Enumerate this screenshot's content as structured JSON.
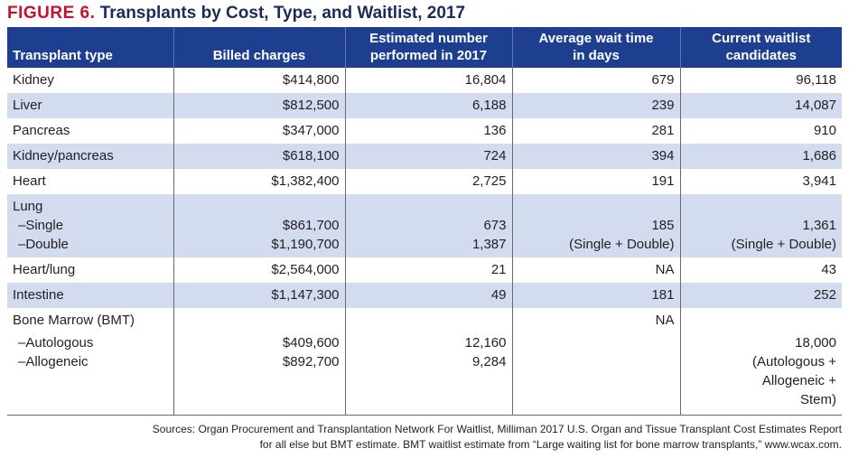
{
  "title": {
    "figure": "FIGURE 6.",
    "text": "Transplants by Cost, Type, and Waitlist, 2017"
  },
  "headers": {
    "c0": "Transplant type",
    "c1": "Billed charges",
    "c2a": "Estimated number",
    "c2b": "performed in 2017",
    "c3a": "Average wait time",
    "c3b": "in days",
    "c4a": "Current waitlist",
    "c4b": "candidates"
  },
  "rows": [
    {
      "type": "Kidney",
      "charges": "$414,800",
      "number": "16,804",
      "wait": "679",
      "waitlist": "96,118"
    },
    {
      "type": "Liver",
      "charges": "$812,500",
      "number": "6,188",
      "wait": "239",
      "waitlist": "14,087"
    },
    {
      "type": "Pancreas",
      "charges": "$347,000",
      "number": "136",
      "wait": "281",
      "waitlist": "910"
    },
    {
      "type": "Kidney/pancreas",
      "charges": "$618,100",
      "number": "724",
      "wait": "394",
      "waitlist": "1,686"
    },
    {
      "type": "Heart",
      "charges": "$1,382,400",
      "number": "2,725",
      "wait": "191",
      "waitlist": "3,941"
    }
  ],
  "lung": {
    "type": "Lung",
    "single_label": "–Single",
    "double_label": "–Double",
    "single_charges": "$861,700",
    "double_charges": "$1,190,700",
    "single_number": "673",
    "double_number": "1,387",
    "wait": "185",
    "wait_note": "(Single + Double)",
    "waitlist": "1,361",
    "waitlist_note": "(Single + Double)"
  },
  "rows2": [
    {
      "type": "Heart/lung",
      "charges": "$2,564,000",
      "number": "21",
      "wait": "NA",
      "waitlist": "43"
    },
    {
      "type": "Intestine",
      "charges": "$1,147,300",
      "number": "49",
      "wait": "181",
      "waitlist": "252"
    }
  ],
  "bmt": {
    "type": "Bone Marrow (BMT)",
    "auto_label": "–Autologous",
    "allo_label": "–Allogeneic",
    "auto_charges": "$409,600",
    "allo_charges": "$892,700",
    "auto_number": "12,160",
    "allo_number": "9,284",
    "wait": "NA",
    "waitlist": "18,000",
    "waitlist_note1": "(Autologous +",
    "waitlist_note2": "Allogeneic +",
    "waitlist_note3": "Stem)"
  },
  "source": {
    "line1": "Sources: Organ Procurement and Transplantation Network For Waitlist, Milliman 2017 U.S. Organ and Tissue Transplant Cost Estimates Report",
    "line2": "for all else but BMT estimate. BMT waitlist estimate from “Large waiting list for bone marrow transplants,” www.wcax.com."
  }
}
